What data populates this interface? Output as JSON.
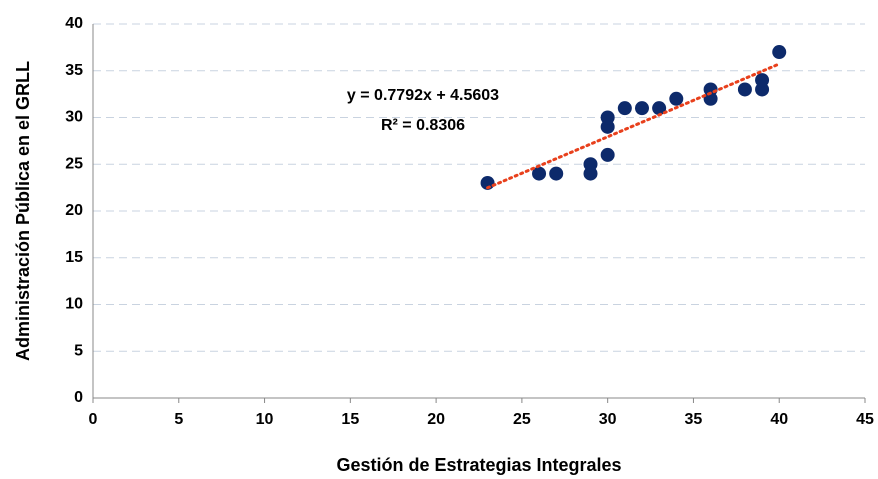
{
  "chart_data": {
    "type": "scatter",
    "x_label": "Gestión de Estrategias Integrales",
    "y_label": "Administración Pública en el GRLL",
    "x": [
      23,
      26,
      27,
      29,
      29,
      30,
      30,
      30,
      31,
      32,
      33,
      34,
      36,
      36,
      38,
      39,
      39,
      40
    ],
    "y": [
      23,
      24,
      24,
      24,
      25,
      26,
      29,
      30,
      31,
      31,
      31,
      32,
      32,
      33,
      33,
      33,
      34,
      37
    ],
    "color": "#0d2a6b",
    "xlim": [
      0,
      45
    ],
    "xticks": [
      0,
      5,
      10,
      15,
      20,
      25,
      30,
      35,
      40,
      45
    ],
    "ylim": [
      0,
      40
    ],
    "yticks": [
      0,
      5,
      10,
      15,
      20,
      25,
      30,
      35,
      40
    ],
    "grid": true,
    "trendline": {
      "equation": "y = 0.7792x + 4.5603",
      "r2_label": "R² = 0.8306",
      "slope": 0.7792,
      "intercept": 4.5603,
      "color": "#e8401c"
    }
  }
}
